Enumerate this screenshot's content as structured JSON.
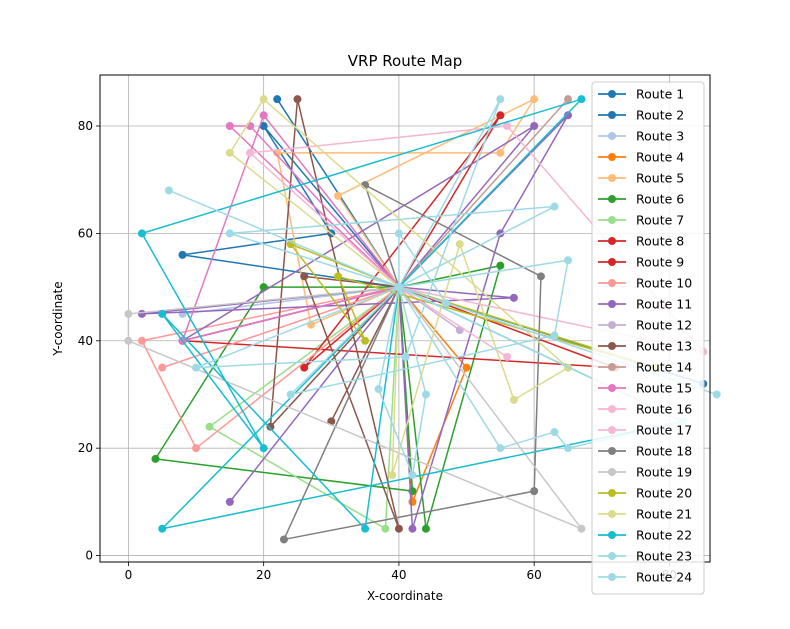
{
  "chart_data": {
    "type": "line",
    "title": "VRP Route Map",
    "xlabel": "X-coordinate",
    "ylabel": "Y-coordinate",
    "xlim": [
      -4.2,
      86
    ],
    "ylim": [
      -1.2,
      89.5
    ],
    "xticks": [
      0,
      20,
      40,
      60,
      80
    ],
    "yticks": [
      0,
      20,
      40,
      60,
      80
    ],
    "grid": true,
    "legend": "right",
    "depot": [
      40,
      50
    ],
    "series": [
      {
        "name": "Route 1",
        "color": "#1f77b4",
        "points": [
          [
            40,
            50
          ],
          [
            22,
            85
          ],
          [
            40,
            50
          ]
        ]
      },
      {
        "name": "Route 2",
        "color": "#1f77b4",
        "points": [
          [
            40,
            50
          ],
          [
            20,
            80
          ],
          [
            30,
            60
          ],
          [
            8,
            56
          ],
          [
            40,
            50
          ],
          [
            85,
            32
          ],
          [
            40,
            50
          ]
        ]
      },
      {
        "name": "Route 3",
        "color": "#aec7e8",
        "points": [
          [
            40,
            50
          ],
          [
            8,
            45
          ],
          [
            40,
            50
          ]
        ]
      },
      {
        "name": "Route 4",
        "color": "#ff7f0e",
        "points": [
          [
            40,
            50
          ],
          [
            50,
            35
          ],
          [
            42,
            10
          ],
          [
            40,
            50
          ]
        ]
      },
      {
        "name": "Route 5",
        "color": "#ffbb78",
        "points": [
          [
            40,
            50
          ],
          [
            31,
            67
          ],
          [
            60,
            85
          ],
          [
            55,
            75
          ],
          [
            22,
            75
          ],
          [
            27,
            43
          ],
          [
            40,
            50
          ]
        ]
      },
      {
        "name": "Route 6",
        "color": "#2ca02c",
        "points": [
          [
            40,
            50
          ],
          [
            55,
            54
          ],
          [
            44,
            5
          ],
          [
            40,
            50
          ],
          [
            20,
            50
          ],
          [
            4,
            18
          ],
          [
            42,
            12
          ],
          [
            40,
            50
          ]
        ]
      },
      {
        "name": "Route 7",
        "color": "#98df8a",
        "points": [
          [
            40,
            50
          ],
          [
            38,
            5
          ],
          [
            12,
            24
          ],
          [
            40,
            50
          ]
        ]
      },
      {
        "name": "Route 8",
        "color": "#d62728",
        "points": [
          [
            40,
            50
          ],
          [
            55,
            82
          ],
          [
            26,
            35
          ],
          [
            40,
            50
          ]
        ]
      },
      {
        "name": "Route 9",
        "color": "#d62728",
        "points": [
          [
            40,
            50
          ],
          [
            72,
            35
          ],
          [
            8,
            40
          ],
          [
            40,
            50
          ]
        ]
      },
      {
        "name": "Route 10",
        "color": "#ff9896",
        "points": [
          [
            40,
            50
          ],
          [
            2,
            40
          ],
          [
            10,
            20
          ],
          [
            40,
            50
          ],
          [
            5,
            35
          ],
          [
            40,
            50
          ]
        ]
      },
      {
        "name": "Route 11",
        "color": "#9467bd",
        "points": [
          [
            40,
            50
          ],
          [
            65,
            82
          ],
          [
            55,
            60
          ],
          [
            42,
            5
          ],
          [
            40,
            50
          ],
          [
            15,
            10
          ],
          [
            40,
            50
          ],
          [
            57,
            48
          ],
          [
            2,
            45
          ],
          [
            40,
            50
          ],
          [
            60,
            80
          ],
          [
            8,
            40
          ],
          [
            40,
            50
          ]
        ]
      },
      {
        "name": "Route 12",
        "color": "#c5b0d5",
        "points": [
          [
            40,
            50
          ],
          [
            49,
            42
          ],
          [
            40,
            50
          ]
        ]
      },
      {
        "name": "Route 13",
        "color": "#8c564b",
        "points": [
          [
            40,
            50
          ],
          [
            26,
            52
          ],
          [
            40,
            5
          ],
          [
            25,
            85
          ],
          [
            21,
            24
          ],
          [
            40,
            50
          ],
          [
            30,
            25
          ],
          [
            40,
            50
          ]
        ]
      },
      {
        "name": "Route 14",
        "color": "#c49c94",
        "points": [
          [
            40,
            50
          ],
          [
            65,
            85
          ],
          [
            40,
            50
          ]
        ]
      },
      {
        "name": "Route 15",
        "color": "#e377c2",
        "points": [
          [
            40,
            50
          ],
          [
            15,
            80
          ],
          [
            18,
            80
          ],
          [
            40,
            50
          ],
          [
            20,
            82
          ],
          [
            8,
            40
          ],
          [
            40,
            50
          ]
        ]
      },
      {
        "name": "Route 16",
        "color": "#f7b6d2",
        "points": [
          [
            40,
            50
          ],
          [
            18,
            75
          ],
          [
            56,
            80
          ],
          [
            85,
            38
          ],
          [
            40,
            50
          ]
        ]
      },
      {
        "name": "Route 17",
        "color": "#f7b6d2",
        "points": [
          [
            40,
            50
          ],
          [
            56,
            37
          ],
          [
            40,
            50
          ]
        ]
      },
      {
        "name": "Route 18",
        "color": "#7f7f7f",
        "points": [
          [
            40,
            50
          ],
          [
            35,
            69
          ],
          [
            61,
            52
          ],
          [
            60,
            12
          ],
          [
            23,
            3
          ],
          [
            40,
            50
          ]
        ]
      },
      {
        "name": "Route 19",
        "color": "#c7c7c7",
        "points": [
          [
            40,
            50
          ],
          [
            0,
            45
          ],
          [
            0,
            40
          ],
          [
            67,
            5
          ],
          [
            40,
            50
          ]
        ]
      },
      {
        "name": "Route 20",
        "color": "#bcbd22",
        "points": [
          [
            40,
            50
          ],
          [
            24,
            58
          ],
          [
            35,
            40
          ],
          [
            31,
            52
          ],
          [
            78,
            35
          ],
          [
            40,
            50
          ]
        ]
      },
      {
        "name": "Route 21",
        "color": "#dbdb8d",
        "points": [
          [
            40,
            50
          ],
          [
            15,
            75
          ],
          [
            20,
            85
          ],
          [
            65,
            35
          ],
          [
            57,
            29
          ],
          [
            49,
            58
          ],
          [
            39,
            15
          ],
          [
            40,
            50
          ]
        ]
      },
      {
        "name": "Route 22",
        "color": "#17becf",
        "points": [
          [
            40,
            50
          ],
          [
            67,
            85
          ],
          [
            2,
            60
          ],
          [
            20,
            20
          ],
          [
            5,
            45
          ],
          [
            35,
            5
          ],
          [
            40,
            50
          ],
          [
            5,
            5
          ],
          [
            82,
            25
          ],
          [
            40,
            50
          ]
        ]
      },
      {
        "name": "Route 23",
        "color": "#9edae5",
        "points": [
          [
            40,
            50
          ],
          [
            55,
            85
          ],
          [
            41,
            37
          ],
          [
            10,
            35
          ],
          [
            40,
            50
          ],
          [
            44,
            30
          ],
          [
            42,
            15
          ],
          [
            37,
            31
          ],
          [
            40,
            50
          ],
          [
            15,
            60
          ],
          [
            63,
            65
          ],
          [
            40,
            50
          ],
          [
            55,
            20
          ],
          [
            63,
            23
          ],
          [
            65,
            20
          ],
          [
            82,
            25
          ],
          [
            40,
            50
          ],
          [
            6,
            68
          ],
          [
            40,
            50
          ],
          [
            65,
            55
          ],
          [
            63,
            41
          ],
          [
            24,
            30
          ],
          [
            40,
            50
          ]
        ]
      },
      {
        "name": "Route 24",
        "color": "#9edae5",
        "points": [
          [
            40,
            50
          ],
          [
            40,
            60
          ],
          [
            47,
            47
          ],
          [
            40,
            50
          ],
          [
            87,
            30
          ],
          [
            40,
            50
          ]
        ]
      }
    ]
  }
}
